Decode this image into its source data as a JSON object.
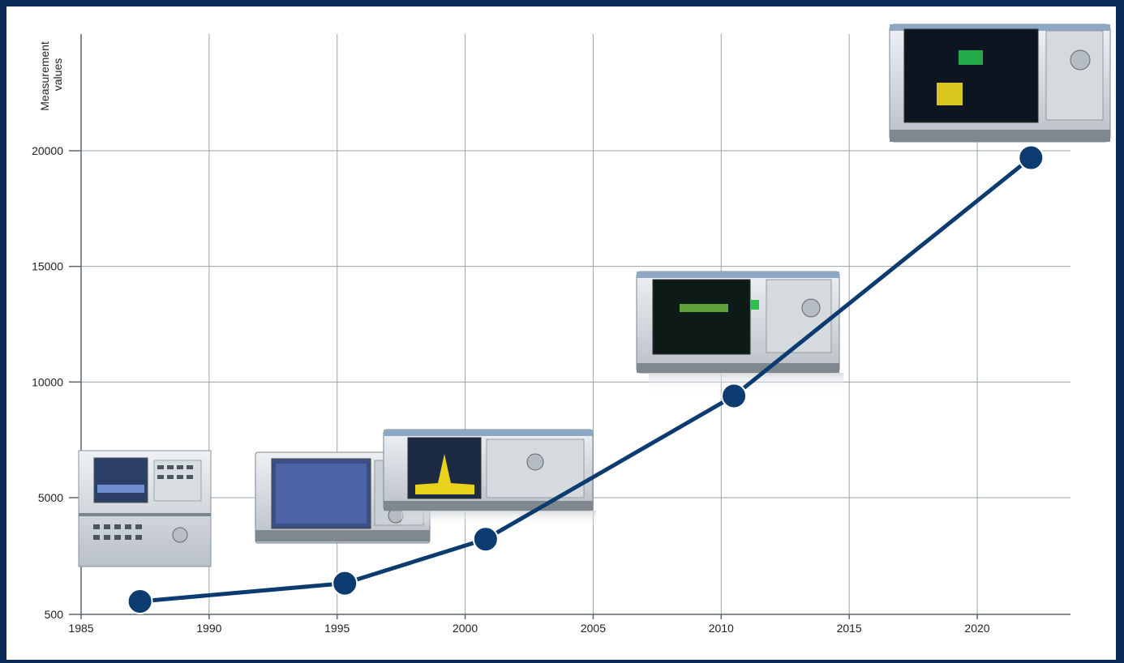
{
  "chart_data": {
    "type": "line",
    "title": "",
    "xlabel": "",
    "ylabel": "Measurement values",
    "xlim": [
      1985,
      2024
    ],
    "ylim": [
      500,
      20000
    ],
    "xticks": [
      "1985",
      "1990",
      "1995",
      "2000",
      "2005",
      "2010",
      "2015",
      "2020"
    ],
    "yticks": [
      "500",
      "5000",
      "10000",
      "15000",
      "20000"
    ],
    "grid": true,
    "legend": "none",
    "series": [
      {
        "values": [
          {
            "x": 1987.3,
            "y": 1000
          },
          {
            "x": 1995.3,
            "y": 1700
          },
          {
            "x": 2000.8,
            "y": 3400
          },
          {
            "x": 2010.5,
            "y": 9400
          },
          {
            "x": 2022.1,
            "y": 19700
          }
        ]
      }
    ]
  },
  "colors": {
    "frame": "#0b2a55",
    "line": "#0b3b6f",
    "grid": "#9aa3ab"
  },
  "instrument_images": [
    "analyzer-1987-icon",
    "analyzer-1995-icon",
    "analyzer-2000-icon",
    "analyzer-2010-icon",
    "analyzer-2022-icon"
  ]
}
